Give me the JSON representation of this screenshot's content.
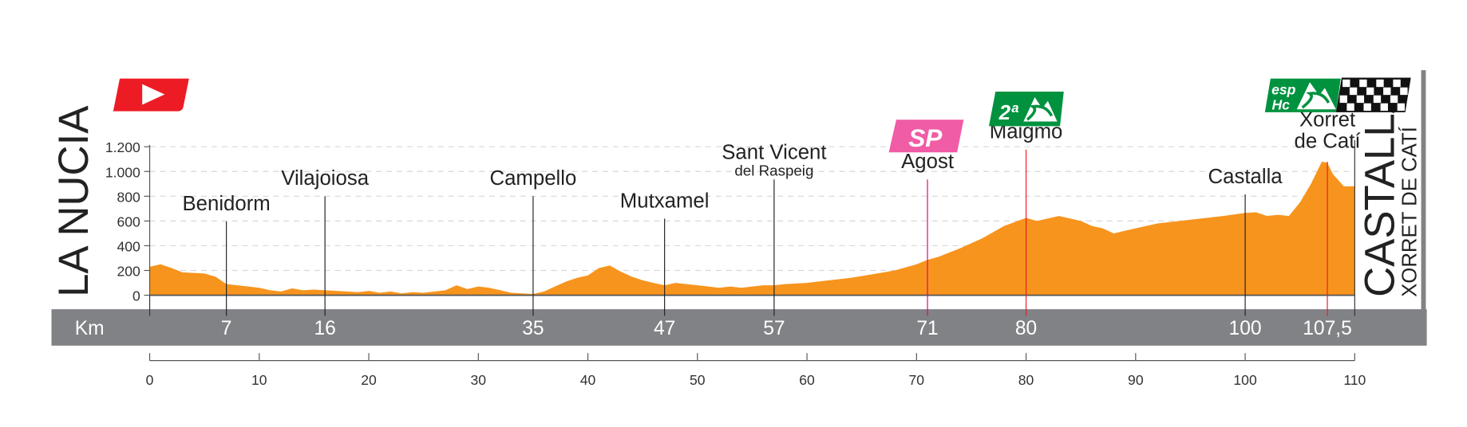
{
  "chart_data": {
    "type": "area",
    "title": "",
    "start": "LA NUCIA",
    "finish": "CASTALLA",
    "finish_subtitle": "XORRET DE CATÍ",
    "xlabel": "Km",
    "ylabel": "",
    "xlim": [
      0,
      110
    ],
    "ylim": [
      0,
      1200
    ],
    "yticks": [
      0,
      200,
      400,
      600,
      800,
      1000,
      1200
    ],
    "ytick_labels": [
      "0",
      "200",
      "400",
      "600",
      "800",
      "1.000",
      "1.200"
    ],
    "xticks": [
      0,
      10,
      20,
      30,
      40,
      50,
      60,
      70,
      80,
      90,
      100,
      110
    ],
    "xtick_labels": [
      "0",
      "10",
      "20",
      "30",
      "40",
      "50",
      "60",
      "70",
      "80",
      "90",
      "100",
      "110"
    ],
    "grid": true,
    "fill_color": "#f7941d",
    "profile": {
      "km": [
        0,
        1,
        2,
        3,
        5,
        6,
        7,
        8,
        9,
        10,
        11,
        12,
        13,
        14,
        15,
        16,
        17,
        18,
        19,
        20,
        21,
        22,
        23,
        24,
        25,
        26,
        27,
        28,
        29,
        30,
        31,
        32,
        33,
        34,
        35,
        36,
        37,
        38,
        39,
        40,
        41,
        42,
        43,
        44,
        45,
        46,
        47,
        48,
        49,
        50,
        51,
        52,
        53,
        54,
        55,
        56,
        57,
        58,
        60,
        62,
        64,
        66,
        68,
        70,
        71,
        72,
        74,
        76,
        78,
        80,
        81,
        82,
        83,
        84,
        85,
        86,
        87,
        88,
        89,
        90,
        92,
        94,
        96,
        98,
        100,
        101,
        102,
        103,
        104,
        105,
        106,
        107,
        107.5,
        108,
        109,
        110
      ],
      "elevation": [
        230,
        250,
        220,
        185,
        175,
        150,
        90,
        80,
        70,
        60,
        40,
        30,
        55,
        40,
        45,
        40,
        35,
        30,
        25,
        35,
        20,
        30,
        15,
        25,
        20,
        30,
        40,
        80,
        50,
        70,
        60,
        40,
        20,
        15,
        10,
        30,
        70,
        110,
        140,
        160,
        220,
        240,
        190,
        150,
        120,
        100,
        80,
        100,
        90,
        80,
        70,
        60,
        70,
        60,
        70,
        80,
        80,
        90,
        100,
        120,
        140,
        170,
        200,
        250,
        285,
        310,
        380,
        460,
        560,
        625,
        600,
        620,
        640,
        620,
        600,
        560,
        540,
        500,
        520,
        540,
        580,
        600,
        620,
        640,
        665,
        670,
        640,
        650,
        640,
        750,
        900,
        1080,
        1070,
        980,
        880,
        880
      ]
    },
    "waypoints": [
      {
        "name": "Benidorm",
        "sub": "",
        "km": 7,
        "km_label": "7",
        "type": "town"
      },
      {
        "name": "Vilajoiosa",
        "sub": "",
        "km": 16,
        "km_label": "16",
        "type": "town"
      },
      {
        "name": "Campello",
        "sub": "",
        "km": 35,
        "km_label": "35",
        "type": "town"
      },
      {
        "name": "Mutxamel",
        "sub": "",
        "km": 47,
        "km_label": "47",
        "type": "town"
      },
      {
        "name": "Sant Vicent",
        "sub": "del Raspeig",
        "km": 57,
        "km_label": "57",
        "type": "town"
      },
      {
        "name": "Agost",
        "sub": "",
        "km": 71,
        "km_label": "71",
        "type": "sprint"
      },
      {
        "name": "Maigmó",
        "sub": "",
        "km": 80,
        "km_label": "80",
        "type": "climb"
      },
      {
        "name": "Castalla",
        "sub": "",
        "km": 100,
        "km_label": "100",
        "type": "town"
      },
      {
        "name": "Xorret",
        "sub": "de Catí",
        "km": 107.5,
        "km_label": "107,5",
        "type": "climb"
      }
    ],
    "badges": {
      "sprint": "SP",
      "cat2": "2ª",
      "esp": "esp",
      "hc": "Hc"
    },
    "colors": {
      "start": "#ed1c24",
      "sprint": "#f05ca6",
      "climb": "#00923f",
      "band": "#808285",
      "climb_line": "#ed1c24",
      "sprint_line": "#e6007e"
    }
  }
}
